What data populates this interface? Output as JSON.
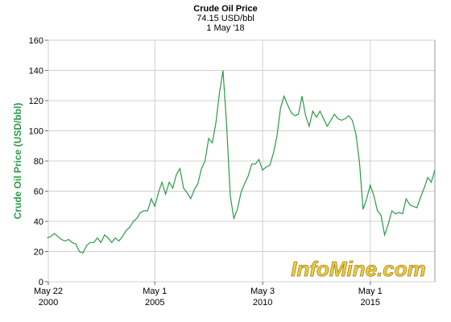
{
  "chart_data": {
    "type": "line",
    "title": "Crude Oil Price",
    "subtitle": "74.15 USD/bbl",
    "date_label": "1 May '18",
    "y_label": "Crude Oil Price (USD/bbl)",
    "watermark": "InfoMine.com",
    "color": "#2b9a4a",
    "grid": true,
    "ylim": [
      0,
      160
    ],
    "yticks": [
      0,
      20,
      40,
      60,
      80,
      100,
      120,
      140,
      160
    ],
    "xlim": [
      "2000-05-22",
      "2018-05-01"
    ],
    "xticks": [
      {
        "value": "2000-05-22",
        "label": "May 22",
        "year": "2000"
      },
      {
        "value": "2005-05-01",
        "label": "May 1",
        "year": "2005"
      },
      {
        "value": "2010-05-03",
        "label": "May 3",
        "year": "2010"
      },
      {
        "value": "2015-05-01",
        "label": "May 1",
        "year": "2015"
      }
    ],
    "x": [
      "2000-05",
      "2000-07",
      "2000-09",
      "2000-11",
      "2001-01",
      "2001-03",
      "2001-05",
      "2001-07",
      "2001-09",
      "2001-11",
      "2002-01",
      "2002-03",
      "2002-05",
      "2002-07",
      "2002-09",
      "2002-11",
      "2003-01",
      "2003-03",
      "2003-05",
      "2003-07",
      "2003-09",
      "2003-11",
      "2004-01",
      "2004-03",
      "2004-05",
      "2004-07",
      "2004-09",
      "2004-11",
      "2005-01",
      "2005-03",
      "2005-05",
      "2005-07",
      "2005-09",
      "2005-11",
      "2006-01",
      "2006-03",
      "2006-05",
      "2006-07",
      "2006-09",
      "2006-11",
      "2007-01",
      "2007-03",
      "2007-05",
      "2007-07",
      "2007-09",
      "2007-11",
      "2008-01",
      "2008-03",
      "2008-05",
      "2008-07",
      "2008-09",
      "2008-11",
      "2009-01",
      "2009-03",
      "2009-05",
      "2009-07",
      "2009-09",
      "2009-11",
      "2010-01",
      "2010-03",
      "2010-05",
      "2010-07",
      "2010-09",
      "2010-11",
      "2011-01",
      "2011-03",
      "2011-05",
      "2011-07",
      "2011-09",
      "2011-11",
      "2012-01",
      "2012-03",
      "2012-05",
      "2012-07",
      "2012-09",
      "2012-11",
      "2013-01",
      "2013-03",
      "2013-05",
      "2013-07",
      "2013-09",
      "2013-11",
      "2014-01",
      "2014-03",
      "2014-05",
      "2014-07",
      "2014-09",
      "2014-11",
      "2015-01",
      "2015-03",
      "2015-05",
      "2015-07",
      "2015-09",
      "2015-11",
      "2016-01",
      "2016-03",
      "2016-05",
      "2016-07",
      "2016-09",
      "2016-11",
      "2017-01",
      "2017-03",
      "2017-05",
      "2017-07",
      "2017-09",
      "2017-11",
      "2018-01",
      "2018-03",
      "2018-05"
    ],
    "values": [
      29,
      30,
      32,
      30,
      28,
      27,
      28,
      26,
      25,
      20,
      19,
      24,
      26,
      26,
      29,
      26,
      31,
      29,
      26,
      29,
      27,
      30,
      34,
      36,
      40,
      42,
      46,
      47,
      47,
      55,
      50,
      59,
      66,
      58,
      66,
      62,
      71,
      75,
      62,
      59,
      55,
      61,
      65,
      75,
      80,
      95,
      92,
      105,
      125,
      140,
      104,
      57,
      42,
      48,
      59,
      65,
      70,
      78,
      78,
      81,
      74,
      76,
      77,
      85,
      96,
      115,
      123,
      117,
      112,
      110,
      111,
      123,
      110,
      103,
      113,
      109,
      113,
      108,
      103,
      107,
      111,
      108,
      107,
      108,
      110,
      107,
      98,
      79,
      48,
      55,
      64,
      57,
      47,
      44,
      31,
      38,
      47,
      45,
      46,
      45,
      55,
      51,
      50,
      49,
      56,
      62,
      69,
      66,
      74.15
    ]
  }
}
